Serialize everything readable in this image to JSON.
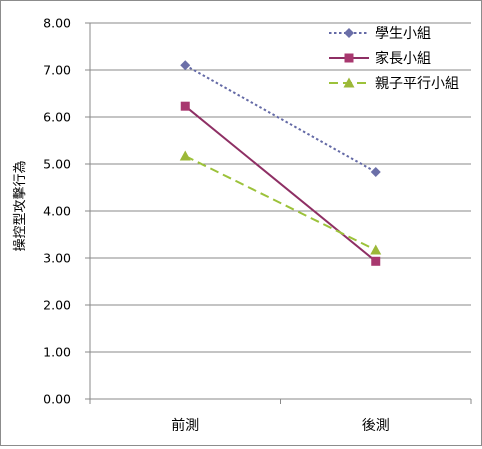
{
  "chart_data": {
    "type": "line",
    "title": "",
    "xlabel": "",
    "ylabel": "操控型攻擊行為",
    "categories": [
      "前測",
      "後測"
    ],
    "ylim": [
      0,
      8
    ],
    "yticks": [
      "0.00",
      "1.00",
      "2.00",
      "3.00",
      "4.00",
      "5.00",
      "6.00",
      "7.00",
      "8.00"
    ],
    "grid": true,
    "legend_position": "top-right",
    "series": [
      {
        "name": "學生小組",
        "values": [
          7.1,
          4.83
        ],
        "color": "#646aa6",
        "marker": "diamond",
        "marker_color": "#6b6fa8",
        "line_style": "dotted"
      },
      {
        "name": "家長小組",
        "values": [
          6.23,
          2.93
        ],
        "color": "#8e2f64",
        "marker": "square",
        "marker_color": "#a8386f",
        "line_style": "solid"
      },
      {
        "name": "親子平行小組",
        "values": [
          5.17,
          3.17
        ],
        "color": "#9cc23a",
        "marker": "triangle",
        "marker_color": "#9cb838",
        "line_style": "dashed"
      }
    ]
  }
}
